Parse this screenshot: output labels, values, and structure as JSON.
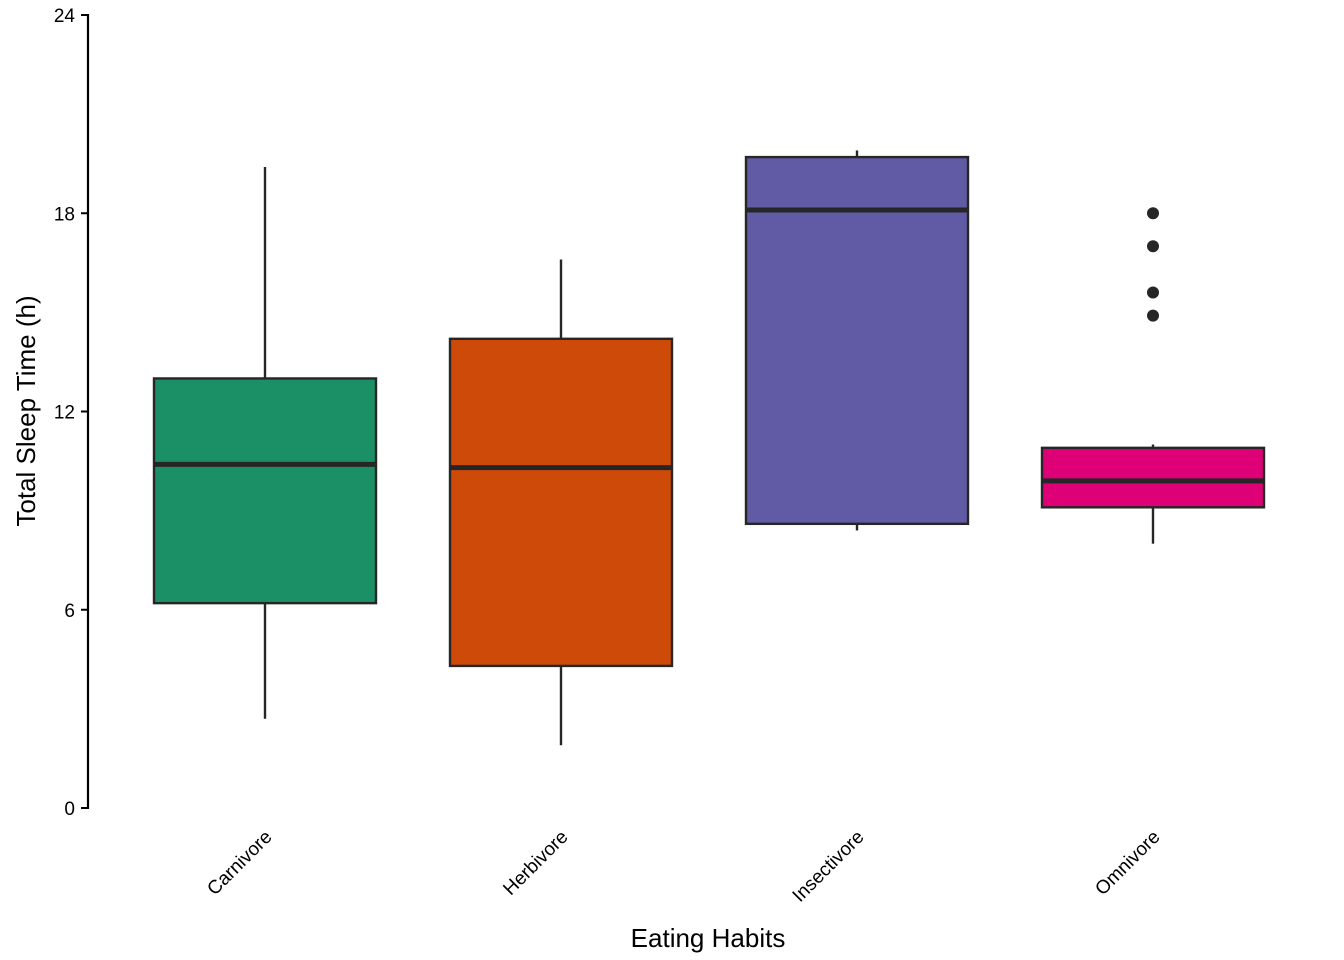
{
  "chart_data": {
    "type": "boxplot",
    "title": "",
    "xlabel": "Eating Habits",
    "ylabel": "Total Sleep Time (h)",
    "ylim": [
      0,
      24
    ],
    "yticks": [
      0,
      6,
      12,
      18,
      24
    ],
    "grid": false,
    "legend": "none",
    "categories": [
      "Carnivore",
      "Herbivore",
      "Insectivore",
      "Omnivore"
    ],
    "series": [
      {
        "name": "Carnivore",
        "color": "#1B9066",
        "whisker_low": 2.7,
        "q1": 6.2,
        "median": 10.4,
        "q3": 13.0,
        "whisker_high": 19.4,
        "outliers": []
      },
      {
        "name": "Herbivore",
        "color": "#CE4A08",
        "whisker_low": 1.9,
        "q1": 4.3,
        "median": 10.3,
        "q3": 14.2,
        "whisker_high": 16.6,
        "outliers": []
      },
      {
        "name": "Insectivore",
        "color": "#615AA4",
        "whisker_low": 8.4,
        "q1": 8.6,
        "median": 18.1,
        "q3": 19.7,
        "whisker_high": 19.9,
        "outliers": []
      },
      {
        "name": "Omnivore",
        "color": "#DE0077",
        "whisker_low": 8.0,
        "q1": 9.1,
        "median": 9.9,
        "q3": 10.9,
        "whisker_high": 11.0,
        "outliers": [
          18.0,
          17.0,
          15.6,
          14.9
        ]
      }
    ]
  }
}
